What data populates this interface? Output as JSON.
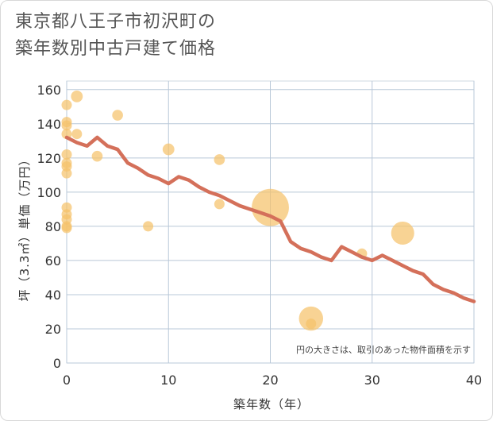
{
  "chart_data": {
    "type": "scatter",
    "title_lines": [
      "東京都八王子市初沢町の",
      "築年数別中古戸建て価格"
    ],
    "xlabel": "築年数（年）",
    "ylabel": "坪（3.3㎡）単価（万円）",
    "xlim": [
      0,
      40
    ],
    "ylim": [
      0,
      165
    ],
    "x_ticks": [
      0,
      10,
      20,
      30,
      40
    ],
    "y_ticks": [
      0,
      20,
      40,
      60,
      80,
      100,
      120,
      140,
      160
    ],
    "grid": true,
    "note": "円の大きさは、取引のあった物件面積を示す",
    "colors": {
      "bubble": "#f5c26b",
      "line": "#d4705a",
      "grid": "#b9c8d8"
    },
    "points": [
      {
        "x": 0,
        "y": 151,
        "size": 1
      },
      {
        "x": 0,
        "y": 141,
        "size": 1
      },
      {
        "x": 0,
        "y": 139,
        "size": 1
      },
      {
        "x": 0,
        "y": 134,
        "size": 1
      },
      {
        "x": 0,
        "y": 122,
        "size": 1
      },
      {
        "x": 0,
        "y": 117,
        "size": 1
      },
      {
        "x": 0,
        "y": 115,
        "size": 1
      },
      {
        "x": 0,
        "y": 111,
        "size": 1
      },
      {
        "x": 0,
        "y": 91,
        "size": 1
      },
      {
        "x": 0,
        "y": 87,
        "size": 1
      },
      {
        "x": 0,
        "y": 84,
        "size": 1
      },
      {
        "x": 0,
        "y": 80,
        "size": 1
      },
      {
        "x": 0,
        "y": 79,
        "size": 1
      },
      {
        "x": 1,
        "y": 156,
        "size": 1.3
      },
      {
        "x": 1,
        "y": 134,
        "size": 1
      },
      {
        "x": 3,
        "y": 121,
        "size": 1.1
      },
      {
        "x": 5,
        "y": 145,
        "size": 1.1
      },
      {
        "x": 8,
        "y": 80,
        "size": 1
      },
      {
        "x": 10,
        "y": 125,
        "size": 1.3
      },
      {
        "x": 15,
        "y": 119,
        "size": 1.1
      },
      {
        "x": 15,
        "y": 93,
        "size": 1
      },
      {
        "x": 20,
        "y": 91,
        "size": 13
      },
      {
        "x": 24,
        "y": 26,
        "size": 5.5
      },
      {
        "x": 24,
        "y": 23,
        "size": 1
      },
      {
        "x": 29,
        "y": 64,
        "size": 1
      },
      {
        "x": 33,
        "y": 76,
        "size": 5
      }
    ],
    "trend": {
      "x": [
        0,
        1,
        2,
        3,
        4,
        5,
        6,
        7,
        8,
        9,
        10,
        11,
        12,
        13,
        14,
        15,
        16,
        17,
        18,
        19,
        20,
        21,
        22,
        23,
        24,
        25,
        26,
        27,
        28,
        29,
        30,
        31,
        32,
        33,
        34,
        35,
        36,
        37,
        38,
        39,
        40
      ],
      "y": [
        132,
        129,
        127,
        132,
        127,
        125,
        117,
        114,
        110,
        108,
        105,
        109,
        107,
        103,
        100,
        98,
        95,
        92,
        90,
        88,
        86,
        83,
        71,
        67,
        65,
        62,
        60,
        68,
        65,
        62,
        60,
        63,
        60,
        57,
        54,
        52,
        46,
        43,
        41,
        38,
        36
      ]
    }
  }
}
